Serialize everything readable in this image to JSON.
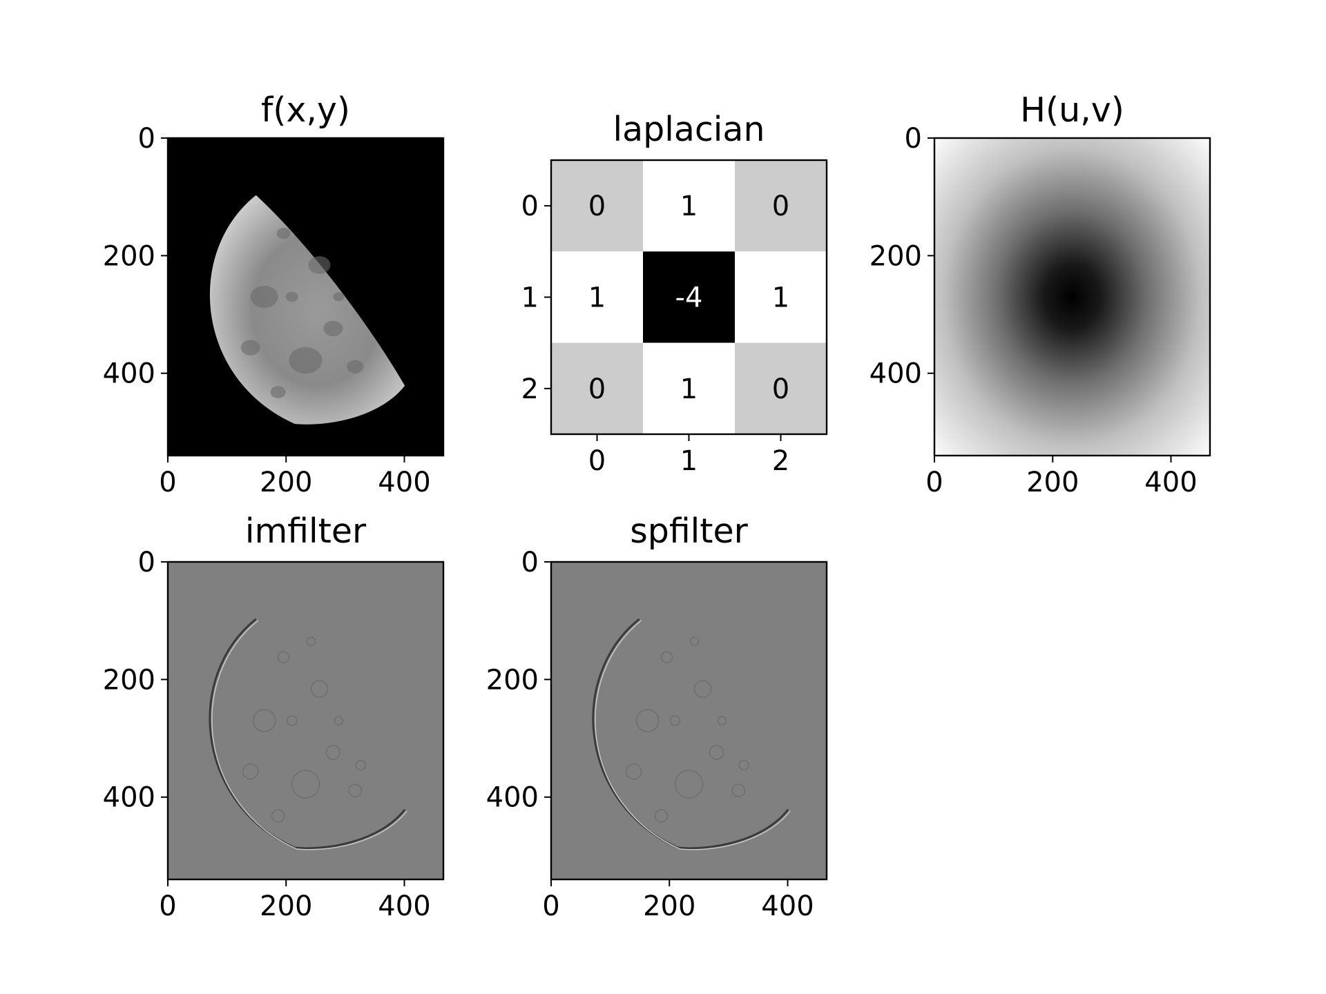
{
  "chart_data": [
    {
      "type": "image",
      "title": "f(x,y)",
      "image_shape": [
        540,
        466
      ],
      "xlim": [
        0,
        466
      ],
      "ylim": [
        540,
        0
      ],
      "xticks": [
        0,
        200,
        400
      ],
      "yticks": [
        0,
        200,
        400
      ],
      "xtick_labels": [
        "0",
        "200",
        "400"
      ],
      "ytick_labels": [
        "0",
        "200",
        "400"
      ],
      "colormap": "gray",
      "content": "moon"
    },
    {
      "type": "heatmap",
      "title": "laplacian",
      "xlim": [
        -0.5,
        2.5
      ],
      "ylim": [
        2.5,
        -0.5
      ],
      "xticks": [
        0,
        1,
        2
      ],
      "yticks": [
        0,
        1,
        2
      ],
      "xtick_labels": [
        "0",
        "1",
        "2"
      ],
      "ytick_labels": [
        "0",
        "1",
        "2"
      ],
      "colormap": "gray",
      "values": [
        [
          0,
          1,
          0
        ],
        [
          1,
          -4,
          1
        ],
        [
          0,
          1,
          0
        ]
      ],
      "cell_labels": [
        [
          "0",
          "1",
          "0"
        ],
        [
          "1",
          "-4",
          "1"
        ],
        [
          "0",
          "1",
          "0"
        ]
      ]
    },
    {
      "type": "image",
      "title": "H(u,v)",
      "image_shape": [
        540,
        466
      ],
      "xlim": [
        0,
        466
      ],
      "ylim": [
        540,
        0
      ],
      "xticks": [
        0,
        200,
        400
      ],
      "yticks": [
        0,
        200,
        400
      ],
      "xtick_labels": [
        "0",
        "200",
        "400"
      ],
      "ytick_labels": [
        "0",
        "200",
        "400"
      ],
      "colormap": "gray",
      "content": "frequency-response"
    },
    {
      "type": "image",
      "title": "imfilter",
      "image_shape": [
        540,
        466
      ],
      "xlim": [
        0,
        466
      ],
      "ylim": [
        540,
        0
      ],
      "xticks": [
        0,
        200,
        400
      ],
      "yticks": [
        0,
        200,
        400
      ],
      "xtick_labels": [
        "0",
        "200",
        "400"
      ],
      "ytick_labels": [
        "0",
        "200",
        "400"
      ],
      "colormap": "gray",
      "content": "edges"
    },
    {
      "type": "image",
      "title": "spfilter",
      "image_shape": [
        540,
        466
      ],
      "xlim": [
        0,
        466
      ],
      "ylim": [
        540,
        0
      ],
      "xticks": [
        0,
        200,
        400
      ],
      "yticks": [
        0,
        200,
        400
      ],
      "xtick_labels": [
        "0",
        "200",
        "400"
      ],
      "ytick_labels": [
        "0",
        "200",
        "400"
      ],
      "colormap": "gray",
      "content": "edges"
    }
  ]
}
